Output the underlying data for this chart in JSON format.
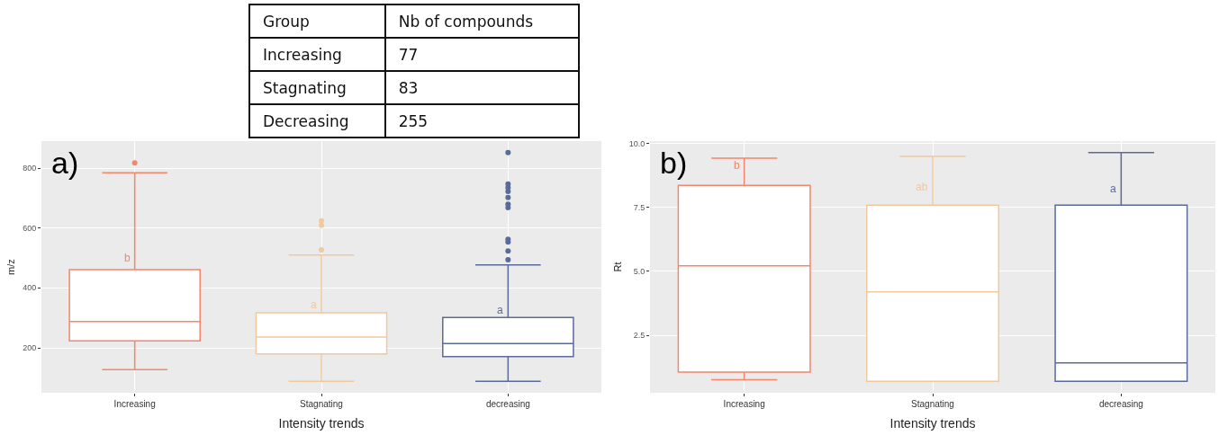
{
  "chart_data": [
    {
      "type": "box",
      "title": "a)",
      "xlabel": "Intensity trends",
      "ylabel": "m/z",
      "categories": [
        "Increasing",
        "Stagnating",
        "decreasing"
      ],
      "colors": [
        "#f4866c",
        "#efc9a0",
        "#5a6b9a"
      ],
      "boxes": [
        {
          "low": 127,
          "q1": 223,
          "median": 288,
          "q3": 461,
          "high": 784,
          "outliers": [
            817
          ]
        },
        {
          "low": 88,
          "q1": 180,
          "median": 236,
          "q3": 317,
          "high": 510,
          "outliers": [
            527,
            609,
            624
          ]
        },
        {
          "low": 88,
          "q1": 171,
          "median": 214,
          "q3": 301,
          "high": 477,
          "outliers": [
            494,
            523,
            553,
            562,
            668,
            679,
            702,
            722,
            735,
            747,
            852
          ]
        }
      ],
      "ylim": [
        50,
        890
      ],
      "yticks": [
        200,
        400,
        600,
        800
      ],
      "grid": true,
      "annotations": [
        {
          "text": "b",
          "x": "Increasing",
          "y": 499
        },
        {
          "text": "a",
          "x": "Stagnating",
          "y": 343
        },
        {
          "text": "a",
          "x": "decreasing",
          "y": 325
        }
      ]
    },
    {
      "type": "other",
      "xlabel": "Group",
      "ylabel": "Nb of compounds",
      "categories": [
        "Increasing",
        "Stagnating",
        "Decreasing"
      ],
      "values": [
        77,
        83,
        255
      ],
      "data_labels": true
    },
    {
      "type": "box",
      "title": "b)",
      "xlabel": "Intensity trends",
      "ylabel": "Rt",
      "categories": [
        "Increasing",
        "Stagnating",
        "decreasing"
      ],
      "colors": [
        "#f4866c",
        "#efc9a0",
        "#5a6b9a"
      ],
      "boxes": [
        {
          "low": 0.76,
          "q1": 1.06,
          "median": 5.22,
          "q3": 8.37,
          "high": 9.43
        },
        {
          "low": 0.7,
          "q1": 0.7,
          "median": 4.2,
          "q3": 7.59,
          "high": 9.5
        },
        {
          "low": 0.7,
          "q1": 0.7,
          "median": 1.42,
          "q3": 7.59,
          "high": 9.65
        }
      ],
      "ylim": [
        0.25,
        10.1
      ],
      "yticks": [
        {
          "value": 2.5,
          "label": "2.5"
        },
        {
          "value": 5,
          "label": "5.0"
        },
        {
          "value": 7.5,
          "label": "7.5"
        },
        {
          "value": 10,
          "label": "10.0"
        }
      ],
      "grid": true,
      "annotations": [
        {
          "text": "b",
          "x": "Increasing",
          "y": 9.16
        },
        {
          "text": "ab",
          "x": "Stagnating",
          "y": 8.29
        },
        {
          "text": "a",
          "x": "decreasing",
          "y": 8.24
        }
      ]
    }
  ]
}
